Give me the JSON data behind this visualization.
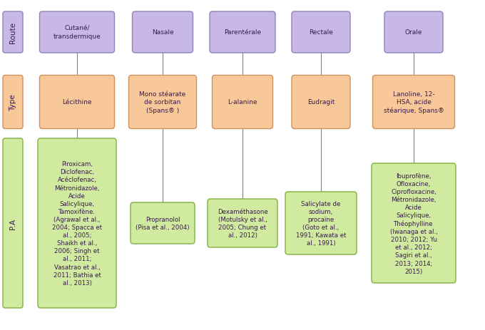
{
  "background_color": "#ffffff",
  "columns": [
    {
      "route": "Cutané/\ntransdermique",
      "type": "Lécithine",
      "pa": "Piroxicam,\nDiclofenac,\nAcéclofenac,\nMétronidazole,\nAcide\nSalicylique,\nTamoxifène.\n(Agrawal et al.,\n2004; Spacca et\nal., 2005;\nShaikh et al.,\n2006; Singh et\nal., 2011;\nVasatrao et al.,\n2011; Bathia et\nal., 2013)"
    },
    {
      "route": "Nasale",
      "type": "Mono stéarate\nde sorbitan\n(Spans® )",
      "pa": "Propranolol\n(Pisa et al., 2004)"
    },
    {
      "route": "Parentérale",
      "type": "L-alanine",
      "pa": "Dexaméthasone\n(Motulsky et al.,\n2005; Chung et\nal., 2012)"
    },
    {
      "route": "Rectale",
      "type": "Eudragit",
      "pa": "Salicylate de\nsodium,\nprocaïne\n(Goto et al.,\n1991; Kawata et\nal., 1991)"
    },
    {
      "route": "Orale",
      "type": "Lanoline, 12-\nHSA, acide\nstéarique, Spans®",
      "pa": "Ibuprofène,\nOfloxacine,\nCiprofloxacine,\nMétronidazole,\nAcide\nSalicylique,\nThéophylline\n(Iwanaga et al.,\n2010; 2012; Yu\net al., 2012;\nSagiri et al.,\n2013; 2014;\n2015)"
    }
  ],
  "route_box_color": "#c8b8e8",
  "route_box_edge": "#9080c0",
  "type_box_color": "#f8c898",
  "type_box_edge": "#d09060",
  "pa_box_color": "#d0eaa0",
  "pa_box_edge": "#80b040",
  "label_route_color": "#c8b8e8",
  "label_route_edge": "#9080c0",
  "label_type_color": "#f8c898",
  "label_type_edge": "#d09060",
  "label_pa_color": "#d0eaa0",
  "label_pa_edge": "#80b040",
  "line_color": "#808080",
  "text_color": "#3a1a50",
  "font_size": 6.5,
  "label_font_size": 7.5
}
